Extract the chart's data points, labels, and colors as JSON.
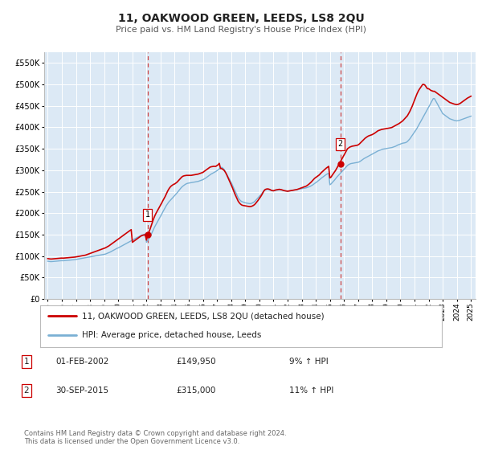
{
  "title": "11, OAKWOOD GREEN, LEEDS, LS8 2QU",
  "subtitle": "Price paid vs. HM Land Registry's House Price Index (HPI)",
  "ylim": [
    0,
    575000
  ],
  "yticks": [
    0,
    50000,
    100000,
    150000,
    200000,
    250000,
    300000,
    350000,
    400000,
    450000,
    500000,
    550000
  ],
  "ytick_labels": [
    "£0",
    "£50K",
    "£100K",
    "£150K",
    "£200K",
    "£250K",
    "£300K",
    "£350K",
    "£400K",
    "£450K",
    "£500K",
    "£550K"
  ],
  "background_color": "#ffffff",
  "plot_bg_color": "#dce9f5",
  "grid_color": "#ffffff",
  "red_line_color": "#cc0000",
  "blue_line_color": "#7ab0d4",
  "marker_color": "#cc0000",
  "purchase1_date": "2002-02-01",
  "purchase1_price": 149950,
  "purchase2_date": "2015-09-30",
  "purchase2_price": 315000,
  "vline_color": "#cc3333",
  "annotation1_num": "1",
  "annotation1_date": "01-FEB-2002",
  "annotation1_price": "£149,950",
  "annotation1_hpi": "9% ↑ HPI",
  "annotation2_num": "2",
  "annotation2_date": "30-SEP-2015",
  "annotation2_price": "£315,000",
  "annotation2_hpi": "11% ↑ HPI",
  "footer1": "Contains HM Land Registry data © Crown copyright and database right 2024.",
  "footer2": "This data is licensed under the Open Government Licence v3.0.",
  "legend_label1": "11, OAKWOOD GREEN, LEEDS, LS8 2QU (detached house)",
  "legend_label2": "HPI: Average price, detached house, Leeds",
  "hpi_values": [
    88000,
    87500,
    87200,
    87000,
    87200,
    87500,
    87800,
    88000,
    88200,
    88500,
    88800,
    89000,
    89200,
    89000,
    89200,
    89500,
    89800,
    90000,
    90300,
    90600,
    90800,
    91000,
    91200,
    91500,
    92000,
    92500,
    93000,
    93500,
    94000,
    94500,
    95000,
    95500,
    96000,
    96500,
    97000,
    97500,
    98000,
    98500,
    99000,
    99500,
    100000,
    100500,
    101000,
    101500,
    102000,
    102500,
    103000,
    103500,
    104000,
    104500,
    105500,
    106500,
    107500,
    109000,
    110500,
    112000,
    113500,
    115000,
    116500,
    118000,
    119000,
    120500,
    122000,
    123500,
    125000,
    126500,
    128000,
    129500,
    131000,
    132500,
    134000,
    135500,
    137000,
    138500,
    140000,
    141500,
    143000,
    144500,
    146000,
    147500,
    148500,
    149500,
    150500,
    151500,
    132000,
    136000,
    140000,
    145000,
    150000,
    156000,
    162000,
    168000,
    173000,
    178000,
    183000,
    188000,
    193000,
    198000,
    203000,
    208000,
    213000,
    218000,
    222000,
    226000,
    229000,
    232000,
    235000,
    238000,
    241000,
    244000,
    247000,
    250500,
    254000,
    257500,
    260500,
    263000,
    265000,
    267000,
    268500,
    269500,
    270000,
    270500,
    271000,
    271500,
    272000,
    272500,
    273000,
    273500,
    274000,
    275000,
    276000,
    277000,
    278000,
    279500,
    281000,
    283000,
    285000,
    287000,
    289000,
    291000,
    292500,
    294000,
    295500,
    297000,
    299000,
    301000,
    303000,
    305000,
    307000,
    305000,
    302000,
    297000,
    292000,
    287000,
    282000,
    277000,
    272000,
    266000,
    260000,
    254000,
    248000,
    242000,
    236000,
    232000,
    229000,
    227000,
    226000,
    225000,
    224000,
    223500,
    223000,
    222500,
    222000,
    222500,
    223500,
    225000,
    227000,
    230000,
    233000,
    236000,
    239000,
    242000,
    245000,
    249000,
    252000,
    254000,
    255000,
    255500,
    255000,
    254000,
    253000,
    252500,
    252000,
    252500,
    253000,
    253500,
    254000,
    254500,
    254000,
    253500,
    253000,
    252500,
    252000,
    251500,
    251000,
    251500,
    252000,
    252500,
    253000,
    253500,
    254000,
    254500,
    255000,
    255500,
    256000,
    256500,
    257000,
    257500,
    258000,
    258500,
    259000,
    260000,
    261000,
    262000,
    263500,
    265000,
    267000,
    269000,
    271000,
    273000,
    275000,
    277000,
    279500,
    282000,
    284000,
    286000,
    288000,
    290000,
    291500,
    293000,
    266000,
    268000,
    271000,
    274000,
    277000,
    280500,
    284000,
    287000,
    290000,
    293000,
    296000,
    299000,
    302000,
    305000,
    308000,
    311000,
    313000,
    314500,
    315500,
    316000,
    316500,
    317000,
    317500,
    318000,
    318500,
    319500,
    321000,
    323000,
    325000,
    327000,
    328500,
    330000,
    331500,
    333000,
    334500,
    336000,
    337500,
    339000,
    340500,
    342000,
    343500,
    345000,
    346000,
    347000,
    348000,
    349000,
    349500,
    350000,
    350500,
    351000,
    351500,
    352000,
    352500,
    353000,
    354000,
    355000,
    356000,
    357500,
    359000,
    360000,
    361000,
    362000,
    363000,
    363500,
    364000,
    365000,
    367000,
    370000,
    373000,
    377000,
    381000,
    385000,
    389000,
    393000,
    397000,
    402000,
    407000,
    412000,
    417000,
    422000,
    427000,
    432000,
    437000,
    442000,
    447000,
    452000,
    457000,
    462000,
    467000,
    467000,
    462000,
    457000,
    452000,
    447000,
    442000,
    437000,
    432000,
    430000,
    428000,
    426000,
    424000,
    422000,
    420000,
    419000,
    418000,
    417000,
    416000,
    415500,
    415000,
    415500,
    416000,
    417000,
    418000,
    419000,
    420000,
    421000,
    422000,
    423000,
    424000,
    425000,
    426000
  ],
  "red_values": [
    94000,
    93500,
    93200,
    93000,
    93200,
    93500,
    93800,
    94000,
    94200,
    94500,
    94800,
    95000,
    95200,
    95000,
    95200,
    95500,
    95800,
    96000,
    96300,
    96600,
    96800,
    97000,
    97200,
    97500,
    98000,
    98500,
    99000,
    99500,
    100000,
    100500,
    101000,
    101500,
    102000,
    103000,
    104000,
    105000,
    106000,
    107000,
    108000,
    109000,
    110000,
    111000,
    112000,
    113000,
    114000,
    115000,
    116000,
    117000,
    118000,
    119000,
    120500,
    122000,
    123500,
    125500,
    127500,
    129500,
    131500,
    133500,
    135500,
    137500,
    139500,
    141500,
    143500,
    145500,
    147500,
    149500,
    151500,
    153500,
    155500,
    157500,
    159500,
    161500,
    132000,
    134000,
    136000,
    138000,
    140000,
    142000,
    144000,
    146000,
    147500,
    148500,
    149000,
    149500,
    137000,
    149950,
    155000,
    162000,
    170000,
    178000,
    186000,
    193000,
    199000,
    204000,
    209000,
    214000,
    219000,
    224000,
    229000,
    234000,
    239000,
    245000,
    251000,
    256000,
    260000,
    263000,
    265000,
    267000,
    268000,
    270000,
    272000,
    275000,
    278000,
    281000,
    284000,
    286000,
    287000,
    287500,
    288000,
    288000,
    288000,
    288000,
    288000,
    288500,
    289000,
    289500,
    290000,
    290500,
    291000,
    292000,
    293000,
    294000,
    295000,
    297000,
    299000,
    301000,
    303000,
    305000,
    307000,
    308000,
    308500,
    309000,
    309000,
    309000,
    311000,
    313000,
    316000,
    304000,
    304000,
    302000,
    300000,
    296000,
    291000,
    285000,
    279000,
    273000,
    267000,
    260000,
    253000,
    246000,
    240000,
    234000,
    228000,
    224000,
    221000,
    219000,
    218000,
    217500,
    217000,
    216500,
    216000,
    215500,
    215000,
    215500,
    216500,
    218000,
    220000,
    223000,
    226500,
    230000,
    234000,
    238000,
    242000,
    247000,
    252000,
    255000,
    256000,
    256500,
    256000,
    255000,
    253500,
    252500,
    252000,
    253000,
    254000,
    254500,
    255000,
    255500,
    255000,
    254500,
    253500,
    252500,
    252000,
    251500,
    251000,
    251500,
    252000,
    252500,
    253000,
    253500,
    254000,
    254500,
    255000,
    256000,
    257000,
    258000,
    259000,
    260000,
    261000,
    262000,
    263000,
    265000,
    267000,
    269500,
    272000,
    275000,
    278000,
    281000,
    283000,
    285000,
    287000,
    289000,
    292000,
    295000,
    297500,
    300000,
    302500,
    305000,
    307000,
    309000,
    282000,
    284000,
    288000,
    292000,
    296000,
    300000,
    305000,
    310000,
    315000,
    320000,
    325000,
    330000,
    335000,
    340000,
    345000,
    350000,
    352000,
    354000,
    355000,
    356000,
    356500,
    357000,
    357500,
    358000,
    359000,
    361000,
    363500,
    366000,
    369000,
    372000,
    374500,
    376500,
    378500,
    380000,
    381000,
    382000,
    383000,
    384500,
    386000,
    388000,
    390000,
    392000,
    393000,
    394000,
    395000,
    395500,
    396000,
    396500,
    397000,
    397500,
    398000,
    398500,
    399000,
    400000,
    401500,
    403000,
    404500,
    406000,
    407500,
    409000,
    411000,
    413000,
    415000,
    418000,
    421000,
    424000,
    427000,
    432000,
    437000,
    443000,
    449000,
    456000,
    463000,
    470000,
    477000,
    483000,
    488000,
    492000,
    496000,
    500000,
    500000,
    498000,
    494000,
    490000,
    490000,
    488000,
    486000,
    485000,
    484000,
    484000,
    482000,
    480000,
    478000,
    476000,
    474000,
    472000,
    470000,
    468000,
    466000,
    464000,
    462000,
    460000,
    458000,
    457000,
    456000,
    455000,
    454000,
    453500,
    453000,
    453500,
    454500,
    456000,
    458000,
    460000,
    462000,
    464000,
    466000,
    468000,
    469500,
    471000,
    472500
  ]
}
